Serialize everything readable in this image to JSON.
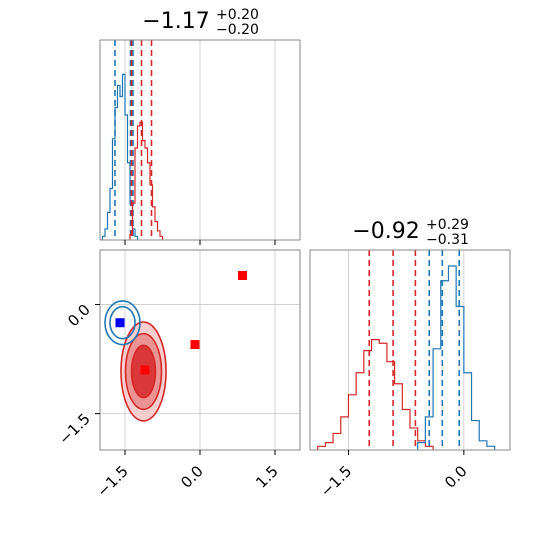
{
  "chart_data": {
    "type": "corner",
    "parameters": [
      "p0",
      "p1"
    ],
    "series": [
      {
        "name": "",
        "color": "#1f77b4"
      },
      {
        "name": "",
        "color": "#d62728"
      }
    ],
    "panels": [
      {
        "id": "hist-p0",
        "type": "histogram",
        "title_value": "−1.17",
        "title_plus": "+0.20",
        "title_minus": "−0.20",
        "xlim": [
          -2.0,
          2.0
        ],
        "blue": {
          "bins": [
            -1.95,
            -1.9,
            -1.85,
            -1.8,
            -1.75,
            -1.7,
            -1.65,
            -1.6,
            -1.55,
            -1.5,
            -1.45,
            -1.4,
            -1.35,
            -1.3
          ],
          "counts": [
            0.02,
            0.06,
            0.15,
            0.28,
            0.55,
            0.72,
            0.84,
            0.78,
            0.9,
            0.68,
            0.42,
            0.2,
            0.06,
            0.02
          ],
          "quantiles": [
            -1.7,
            -1.39,
            -1.34
          ]
        },
        "red": {
          "bins": [
            -1.4,
            -1.35,
            -1.3,
            -1.25,
            -1.2,
            -1.15,
            -1.1,
            -1.05,
            -1.0,
            -0.95,
            -0.9,
            -0.85,
            -0.8
          ],
          "counts": [
            0.03,
            0.2,
            0.5,
            0.62,
            0.64,
            0.54,
            0.5,
            0.42,
            0.3,
            0.18,
            0.1,
            0.05,
            0.02
          ],
          "quantiles": [
            -1.37,
            -1.17,
            -0.97
          ]
        }
      },
      {
        "id": "hist-p1",
        "type": "histogram",
        "title_value": "−0.92",
        "title_plus": "+0.29",
        "title_minus": "−0.31",
        "xlim": [
          -2.0,
          0.6
        ],
        "red": {
          "bins": [
            -1.9,
            -1.8,
            -1.7,
            -1.6,
            -1.5,
            -1.4,
            -1.3,
            -1.2,
            -1.1,
            -1.0,
            -0.9,
            -0.8,
            -0.7,
            -0.6,
            -0.5
          ],
          "counts": [
            0.02,
            0.04,
            0.09,
            0.18,
            0.3,
            0.42,
            0.54,
            0.6,
            0.58,
            0.48,
            0.36,
            0.22,
            0.12,
            0.05,
            0.02
          ],
          "quantiles": [
            -1.23,
            -0.92,
            -0.63
          ]
        },
        "blue": {
          "bins": [
            -0.6,
            -0.5,
            -0.4,
            -0.3,
            -0.2,
            -0.1,
            0.0,
            0.1,
            0.2,
            0.3
          ],
          "counts": [
            0.04,
            0.18,
            0.55,
            0.92,
            1.0,
            0.78,
            0.42,
            0.16,
            0.05,
            0.02
          ],
          "quantiles": [
            -0.45,
            -0.28,
            -0.06
          ]
        }
      },
      {
        "id": "scatter-p0-p1",
        "type": "contour",
        "xlim": [
          -2.0,
          2.0
        ],
        "ylim": [
          -2.0,
          0.75
        ],
        "blue_contours": [
          {
            "cx": -1.55,
            "cy": -0.25,
            "rx": 0.35,
            "ry": 0.3
          },
          {
            "cx": -1.55,
            "cy": -0.25,
            "rx": 0.25,
            "ry": 0.22
          }
        ],
        "red_contours": [
          {
            "cx": -1.13,
            "cy": -0.92,
            "rx": 0.45,
            "ry": 0.68
          },
          {
            "cx": -1.13,
            "cy": -0.92,
            "rx": 0.36,
            "ry": 0.52
          },
          {
            "cx": -1.13,
            "cy": -0.92,
            "rx": 0.24,
            "ry": 0.36
          }
        ],
        "markers": [
          {
            "x": -1.6,
            "y": -0.25,
            "color": "#0000ff"
          },
          {
            "x": -1.1,
            "y": -0.9,
            "color": "#ff0000"
          },
          {
            "x": -0.1,
            "y": -0.55,
            "color": "#ff0000"
          },
          {
            "x": 0.85,
            "y": 0.4,
            "color": "#ff0000"
          }
        ]
      }
    ],
    "ticks": {
      "x_p0": [
        {
          "value": -1.5,
          "label": "−1.5"
        },
        {
          "value": 0.0,
          "label": "0.0"
        },
        {
          "value": 1.5,
          "label": "1.5"
        }
      ],
      "y_p1": [
        {
          "value": 0.0,
          "label": "0.0"
        },
        {
          "value": -1.5,
          "label": "−1.5"
        }
      ],
      "x_p1": [
        {
          "value": -1.5,
          "label": "−1.5"
        },
        {
          "value": 0.0,
          "label": "0.0"
        }
      ]
    },
    "grid": true
  }
}
